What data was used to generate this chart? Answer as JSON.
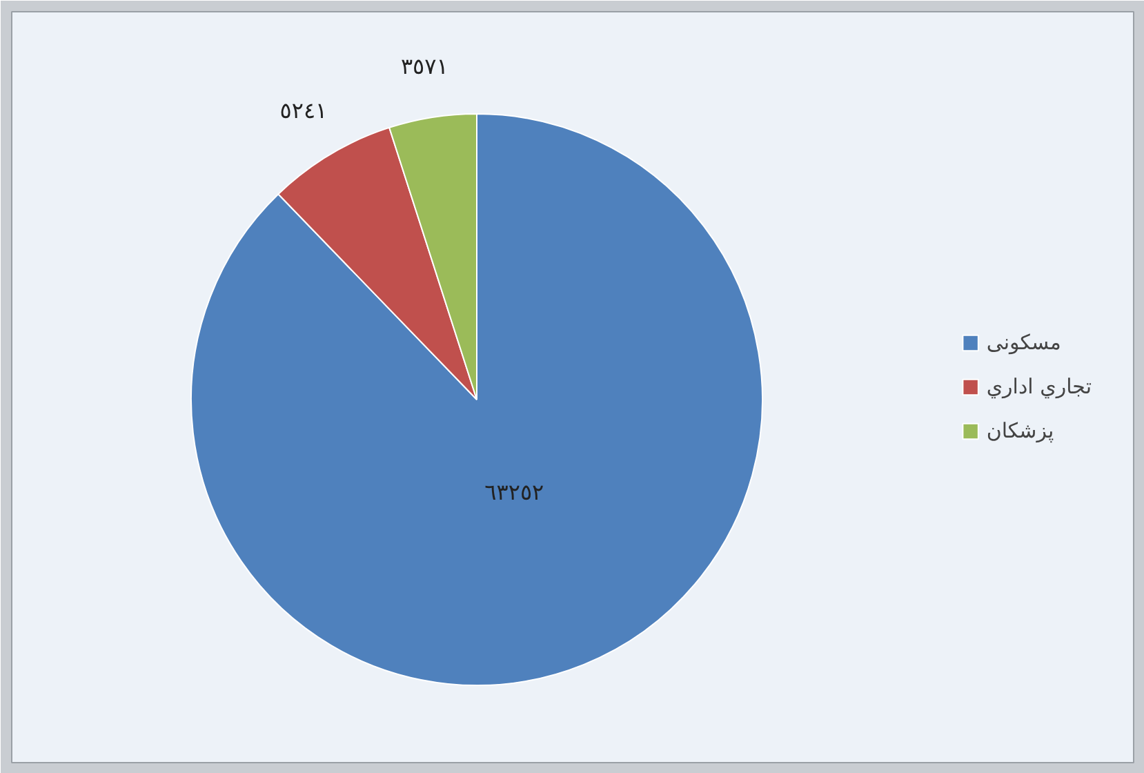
{
  "chart_data": {
    "type": "pie",
    "categories": [
      "مسکونی",
      "تجاري اداري",
      "پزشکان"
    ],
    "values": [
      63252,
      5241,
      3571
    ],
    "colors": [
      "#4f81bd",
      "#c0504d",
      "#9bbb59"
    ],
    "value_labels": [
      "٦٣٢٥٢",
      "٥٢٤١",
      "٣٥٧١"
    ],
    "legend": "right"
  }
}
